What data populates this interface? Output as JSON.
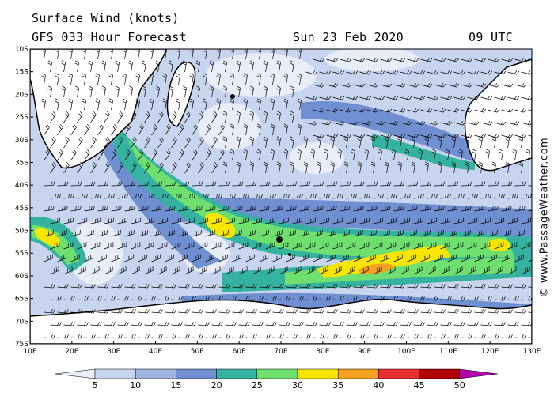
{
  "header": {
    "title": "Surface Wind (knots)",
    "forecast": "GFS 033 Hour Forecast",
    "date": "Sun 23 Feb 2020",
    "time": "09 UTC"
  },
  "watermark": "© www.PassageWeather.com",
  "axes": {
    "latitude_labels": [
      "10S",
      "15S",
      "20S",
      "25S",
      "30S",
      "35S",
      "40S",
      "45S",
      "50S",
      "55S",
      "60S",
      "65S",
      "70S",
      "75S"
    ],
    "longitude_labels": [
      "10E",
      "20E",
      "30E",
      "40E",
      "50E",
      "60E",
      "70E",
      "80E",
      "90E",
      "100E",
      "110E",
      "120E",
      "130E"
    ]
  },
  "legend": {
    "ticks": [
      "5",
      "10",
      "15",
      "20",
      "25",
      "30",
      "35",
      "40",
      "45",
      "50"
    ],
    "colors": [
      "#e8eef8",
      "#c8d5ee",
      "#9fb4e0",
      "#6f8fd0",
      "#35b3a0",
      "#6fe070",
      "#f8e600",
      "#f5a020",
      "#e83030",
      "#b00000",
      "#b000b0"
    ]
  },
  "map_colors": {
    "land": "#ffffff",
    "ocean_base": "#c8d5ee",
    "coast": "#000000"
  }
}
